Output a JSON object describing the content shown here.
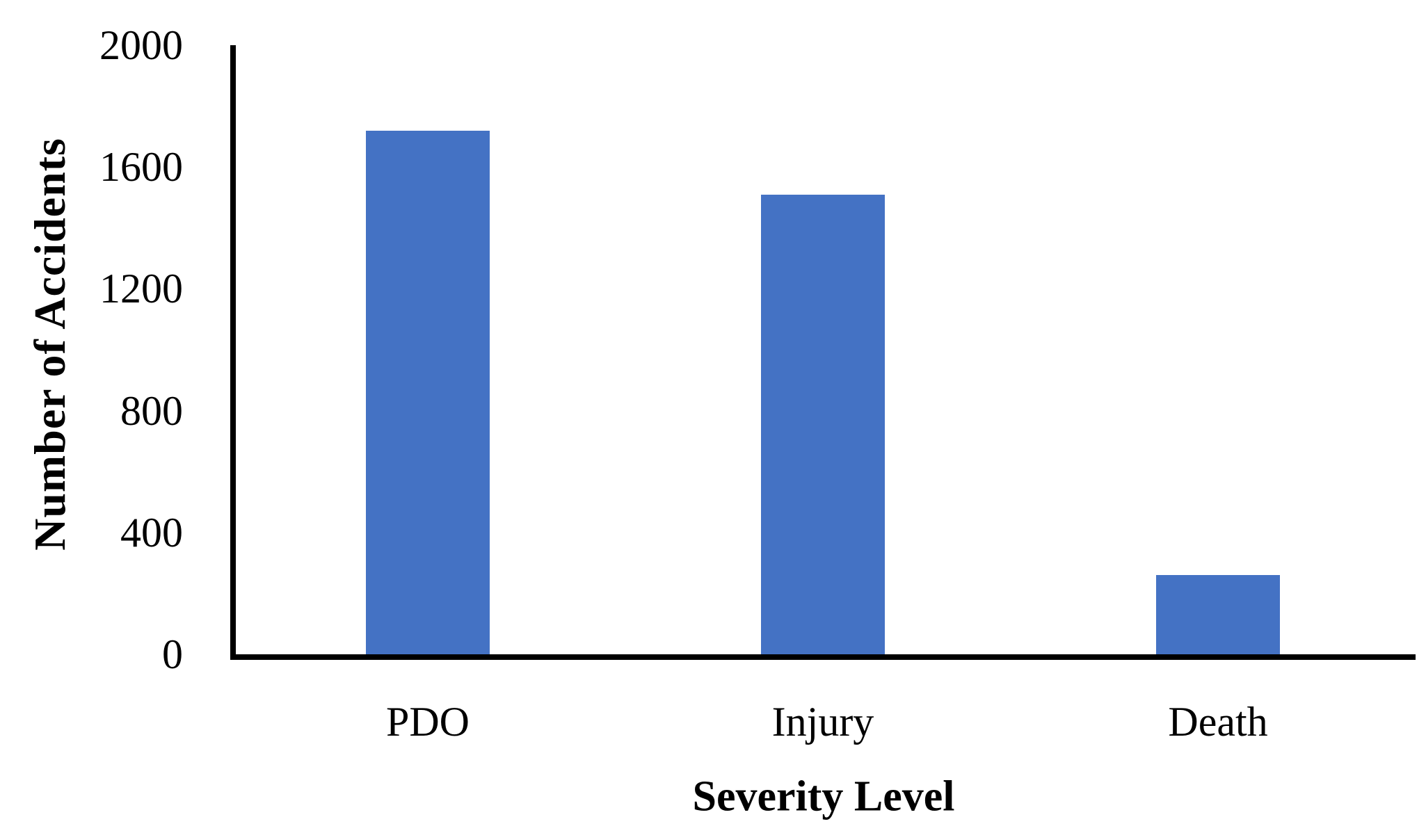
{
  "chart_data": {
    "type": "bar",
    "categories": [
      "PDO",
      "Injury",
      "Death"
    ],
    "values": [
      1720,
      1510,
      260
    ],
    "xlabel": "Severity Level",
    "ylabel": "Number of Accidents",
    "ylim": [
      0,
      2000
    ],
    "yticks": [
      0,
      400,
      800,
      1200,
      1600,
      2000
    ],
    "bar_color": "#4472C4",
    "axis_color": "#000000",
    "text_color": "#000000",
    "grid": false,
    "legend": "none"
  }
}
